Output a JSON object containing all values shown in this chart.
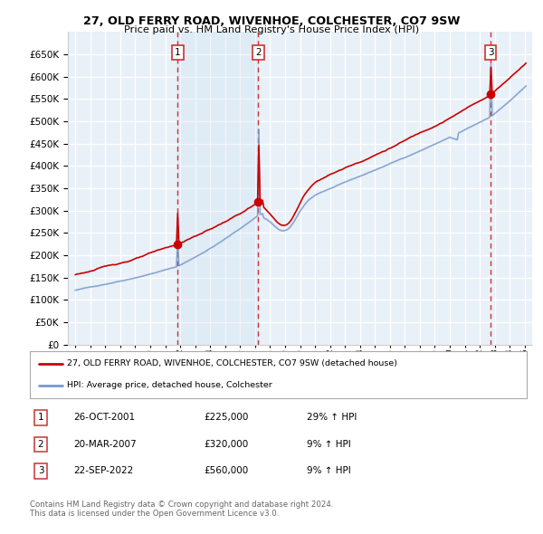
{
  "title": "27, OLD FERRY ROAD, WIVENHOE, COLCHESTER, CO7 9SW",
  "subtitle": "Price paid vs. HM Land Registry's House Price Index (HPI)",
  "legend_label_red": "27, OLD FERRY ROAD, WIVENHOE, COLCHESTER, CO7 9SW (detached house)",
  "legend_label_blue": "HPI: Average price, detached house, Colchester",
  "footer1": "Contains HM Land Registry data © Crown copyright and database right 2024.",
  "footer2": "This data is licensed under the Open Government Licence v3.0.",
  "transactions": [
    {
      "num": 1,
      "date": "26-OCT-2001",
      "price": "£225,000",
      "hpi": "29% ↑ HPI"
    },
    {
      "num": 2,
      "date": "20-MAR-2007",
      "price": "£320,000",
      "hpi": "9% ↑ HPI"
    },
    {
      "num": 3,
      "date": "22-SEP-2022",
      "price": "£560,000",
      "hpi": "9% ↑ HPI"
    }
  ],
  "ylim": [
    0,
    700000
  ],
  "yticks": [
    0,
    50000,
    100000,
    150000,
    200000,
    250000,
    300000,
    350000,
    400000,
    450000,
    500000,
    550000,
    600000,
    650000
  ],
  "background_color": "#e8f0f8",
  "grid_color": "#ffffff",
  "red_color": "#cc0000",
  "blue_color": "#7799cc",
  "shade_color": "#dce8f5",
  "vline_color": "#cc3333",
  "annotation_box_color": "#cc3333",
  "sale_years_dec": [
    2001.83,
    2007.22,
    2022.72
  ],
  "sale_values": [
    225000,
    320000,
    560000
  ],
  "xlim_left": 1994.5,
  "xlim_right": 2025.5
}
